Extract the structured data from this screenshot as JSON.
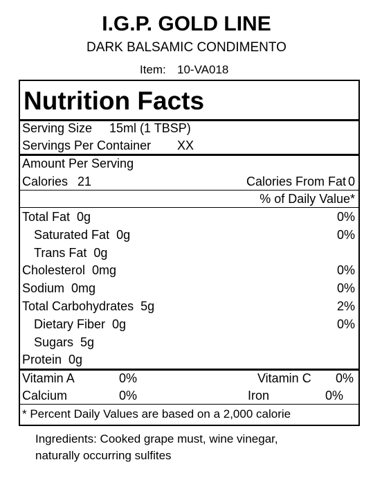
{
  "header": {
    "title": "I.G.P. GOLD LINE",
    "subtitle": "DARK BALSAMIC CONDIMENTO",
    "item_label": "Item:",
    "item_value": "10-VA018"
  },
  "label": {
    "title": "Nutrition Facts",
    "serving_size_label": "Serving Size",
    "serving_size": "15ml (1 TBSP)",
    "servings_label": "Servings Per Container",
    "servings": "XX",
    "amount_per_serving": "Amount Per Serving",
    "calories_label": "Calories",
    "calories": "21",
    "calories_fat_label": "Calories From Fat",
    "calories_fat": "0",
    "dv_header": "% of Daily Value*",
    "nutrients": [
      {
        "name": "Total Fat",
        "amount": "0g",
        "dv": "0%",
        "sub": [
          {
            "name": "Saturated Fat",
            "amount": "0g",
            "dv": "0%"
          },
          {
            "name": "Trans Fat",
            "amount": "0g"
          }
        ]
      },
      {
        "name": "Cholesterol",
        "amount": "0mg",
        "dv": "0%"
      },
      {
        "name": "Sodium",
        "amount": "0mg",
        "dv": "0%"
      },
      {
        "name": "Total Carbohydrates",
        "amount": "5g",
        "dv": "2%",
        "sub": [
          {
            "name": "Dietary Fiber",
            "amount": "0g",
            "dv": "0%"
          },
          {
            "name": "Sugars",
            "amount": "5g"
          }
        ]
      },
      {
        "name": "Protein",
        "amount": "0g"
      }
    ],
    "vitamins": [
      [
        {
          "name": "Vitamin A",
          "dv": "0%"
        },
        {
          "name": "Vitamin C",
          "dv": "0%"
        }
      ],
      [
        {
          "name": "Calcium",
          "dv": "0%"
        },
        {
          "name": "Iron",
          "dv": "0%"
        }
      ]
    ],
    "footnote": "* Percent Daily Values are based on a 2,000 calorie"
  },
  "ingredients": [
    "Ingredients: Cooked grape must, wine vinegar,",
    "naturally occurring sulfites"
  ]
}
